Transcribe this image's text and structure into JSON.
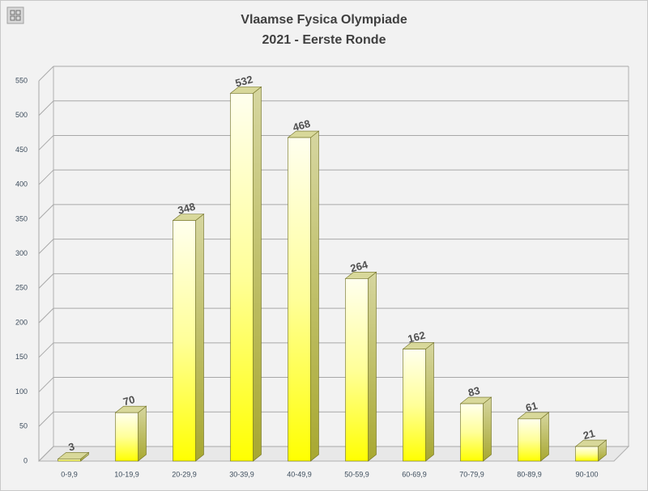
{
  "chart_data": {
    "type": "bar3d",
    "title": "Vlaamse Fysica Olympiade",
    "subtitle": "2021 - Eerste Ronde",
    "categories": [
      "0-9,9",
      "10-19,9",
      "20-29,9",
      "30-39,9",
      "40-49,9",
      "50-59,9",
      "60-69,9",
      "70-79,9",
      "80-89,9",
      "90-100"
    ],
    "values": [
      3,
      70,
      348,
      532,
      468,
      264,
      162,
      83,
      61,
      21
    ],
    "color": "#ffff00",
    "ylim": [
      0,
      550
    ],
    "yticks": [
      0,
      50,
      100,
      150,
      200,
      250,
      300,
      350,
      400,
      450,
      500,
      550
    ],
    "grid": true
  }
}
